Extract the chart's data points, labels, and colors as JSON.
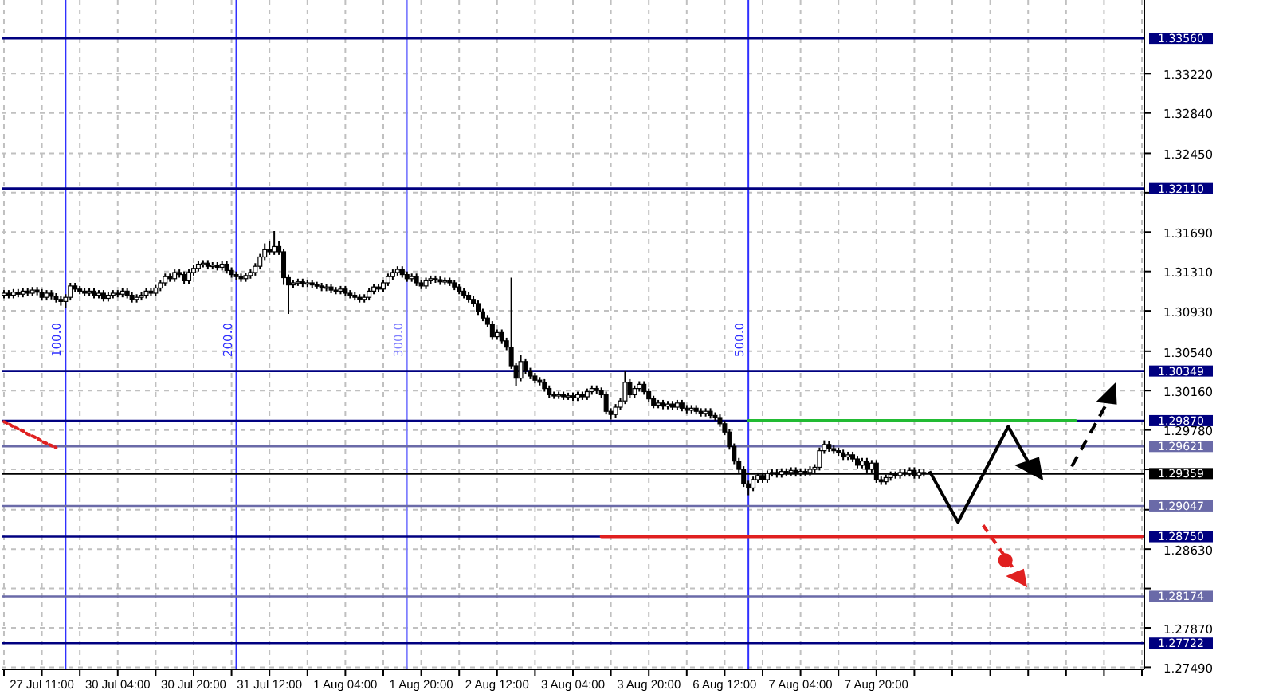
{
  "chart_data": {
    "type": "candlestick",
    "color": "#000000",
    "ylim": [
      1.2747,
      1.3393
    ],
    "grid": true,
    "categories": [
      null,
      null,
      null,
      null,
      null,
      null,
      null,
      null,
      "27 Jul 11:00",
      null,
      null,
      null,
      null,
      null,
      null,
      null,
      null,
      null,
      null,
      null,
      null,
      null,
      null,
      null,
      "30 Jul 04:00",
      null,
      null,
      null,
      null,
      null,
      null,
      null,
      null,
      null,
      null,
      null,
      null,
      null,
      null,
      null,
      "30 Jul 20:00",
      null,
      null,
      null,
      null,
      null,
      null,
      null,
      null,
      null,
      null,
      null,
      null,
      null,
      null,
      null,
      "31 Jul 12:00",
      null,
      null,
      null,
      null,
      null,
      null,
      null,
      null,
      null,
      null,
      null,
      null,
      null,
      null,
      null,
      "1 Aug 04:00",
      null,
      null,
      null,
      null,
      null,
      null,
      null,
      null,
      null,
      null,
      null,
      null,
      null,
      null,
      null,
      "1 Aug 20:00",
      null,
      null,
      null,
      null,
      null,
      null,
      null,
      null,
      null,
      null,
      null,
      null,
      null,
      null,
      null,
      "2 Aug 12:00",
      null,
      null,
      null,
      null,
      null,
      null,
      null,
      null,
      null,
      null,
      null,
      null,
      null,
      null,
      null,
      "3 Aug 04:00",
      null,
      null,
      null,
      null,
      null,
      null,
      null,
      null,
      null,
      null,
      null,
      null,
      null,
      null,
      null,
      "3 Aug 20:00",
      null,
      null,
      null,
      null,
      null,
      null,
      null,
      null,
      null,
      null,
      null,
      null,
      null,
      null,
      null,
      "6 Aug 12:00",
      null,
      null,
      null,
      null,
      null,
      null,
      null,
      null,
      null,
      null,
      null,
      null,
      null,
      null,
      null,
      "7 Aug 04:00",
      null,
      null,
      null,
      null,
      null,
      null,
      null,
      null,
      null,
      null,
      null,
      null,
      null,
      null,
      null,
      "7 Aug 20:00",
      null,
      null,
      null,
      null,
      null,
      null,
      null,
      null,
      null,
      null,
      null,
      null,
      null,
      null,
      null,
      null,
      null,
      null,
      null,
      null,
      null,
      null,
      null,
      null,
      null,
      null,
      null,
      null,
      null,
      null,
      null,
      null,
      null,
      null,
      null,
      null,
      null,
      null,
      null,
      null,
      null,
      null,
      null,
      null,
      null,
      null,
      null,
      null,
      null,
      null,
      null,
      null,
      null,
      null,
      null,
      null
    ],
    "annotations": [
      "100.0",
      "200.0",
      "300.0",
      "500.0"
    ],
    "yticks": [
      {
        "value": 1.2749,
        "label": "1.27490"
      },
      {
        "value": 1.2787,
        "label": "1.27870"
      },
      {
        "value": 1.2825,
        "label": null
      },
      {
        "value": 1.2863,
        "label": "1.28630"
      },
      {
        "value": 1.2901,
        "label": null
      },
      {
        "value": 1.294,
        "label": null
      },
      {
        "value": 1.2978,
        "label": "1.29780"
      },
      {
        "value": 1.3016,
        "label": "1.30160"
      },
      {
        "value": 1.3054,
        "label": "1.30540"
      },
      {
        "value": 1.3093,
        "label": "1.30930"
      },
      {
        "value": 1.3131,
        "label": "1.31310"
      },
      {
        "value": 1.3169,
        "label": "1.31690"
      },
      {
        "value": 1.3207,
        "label": null
      },
      {
        "value": 1.3245,
        "label": "1.32450"
      },
      {
        "value": 1.3284,
        "label": "1.32840"
      },
      {
        "value": 1.3322,
        "label": "1.33220"
      }
    ],
    "ref_lines": [
      {
        "axis": "y",
        "value": 1.3356,
        "label": "1.33560",
        "color": "#000080"
      },
      {
        "axis": "y",
        "value": 1.3211,
        "label": "1.32110",
        "color": "#000080"
      },
      {
        "axis": "y",
        "value": 1.30349,
        "label": "1.30349",
        "color": "#000080"
      },
      {
        "axis": "y",
        "value": 1.2987,
        "label": "1.29870",
        "color": "#000080"
      },
      {
        "axis": "y",
        "value": 1.29621,
        "label": "1.29621",
        "color": "#6a6aa8"
      },
      {
        "axis": "y",
        "value": 1.29359,
        "label": "1.29359",
        "color": "#000000"
      },
      {
        "axis": "y",
        "value": 1.29047,
        "label": "1.29047",
        "color": "#6a6aa8"
      },
      {
        "axis": "y",
        "value": 1.2875,
        "label": "1.28750",
        "color": "#000080"
      },
      {
        "axis": "y",
        "value": 1.28174,
        "label": "1.28174",
        "color": "#6a6aa8"
      },
      {
        "axis": "y",
        "value": 1.27722,
        "label": "1.27722",
        "color": "#000080"
      }
    ],
    "series": [
      {
        "type": "line",
        "color": "#22bb33",
        "values": [
          null,
          null,
          null,
          null,
          null,
          null,
          null,
          null,
          null,
          null,
          null,
          null,
          null,
          null,
          null,
          null,
          null,
          null,
          null,
          null,
          null,
          null,
          null,
          null,
          null,
          null,
          null,
          null,
          null,
          null,
          null,
          null,
          null,
          null,
          null,
          null,
          null,
          null,
          null,
          null,
          null,
          null,
          null,
          null,
          null,
          null,
          null,
          null,
          null,
          null,
          null,
          null,
          null,
          null,
          null,
          null,
          null,
          null,
          null,
          null,
          null,
          null,
          null,
          null,
          null,
          null,
          null,
          null,
          null,
          null,
          null,
          null,
          null,
          null,
          null,
          null,
          null,
          null,
          null,
          null,
          null,
          null,
          null,
          null,
          null,
          null,
          null,
          null,
          null,
          null,
          null,
          null,
          null,
          null,
          null,
          null,
          null,
          null,
          null,
          null,
          null,
          null,
          null,
          null,
          null,
          null,
          null,
          null,
          null,
          null,
          null,
          null,
          null,
          null,
          null,
          null,
          null,
          null,
          null,
          null,
          null,
          null,
          null,
          null,
          null,
          null,
          null,
          null,
          null,
          null,
          null,
          null,
          null,
          null,
          null,
          null,
          null,
          null,
          null,
          null,
          null,
          null,
          null,
          null,
          null,
          null,
          null,
          null,
          null,
          null,
          null,
          null,
          null,
          null,
          null,
          null,
          null,
          1.2987,
          1.2987,
          1.2987,
          1.2987,
          1.2987,
          1.2987,
          1.2987,
          1.2987,
          1.2987,
          1.2987,
          1.2987,
          1.2987,
          1.2987,
          1.2987,
          1.2987,
          1.2987,
          1.2987,
          1.2987,
          1.2987,
          1.2987,
          1.2987,
          1.2987,
          1.2987,
          1.2987,
          1.2987,
          1.2987,
          1.2987,
          1.2987,
          1.2987,
          1.2987,
          1.2987,
          1.2987,
          1.2987,
          1.2987,
          1.2987,
          1.2987,
          1.2987,
          1.2987,
          1.2987,
          1.2987,
          1.2987,
          1.2987,
          1.2987,
          1.2987,
          1.2987,
          1.2987,
          1.2987,
          1.2987,
          1.2987,
          1.2987,
          1.2987,
          1.2987,
          1.2987,
          1.2987,
          1.2987,
          1.2987,
          1.2987,
          1.2987,
          1.2987,
          1.2987,
          1.2987,
          1.2987,
          1.2987,
          1.2987,
          1.2987,
          1.2987,
          1.2987,
          1.2987,
          1.2987,
          1.2987,
          null,
          null,
          null,
          null,
          null,
          null,
          null,
          null,
          null,
          null,
          null,
          null,
          null,
          null
        ]
      },
      {
        "type": "line",
        "color": "#e02020",
        "values": [
          null,
          null,
          null,
          null,
          null,
          null,
          null,
          null,
          null,
          null,
          null,
          null,
          null,
          null,
          null,
          null,
          null,
          null,
          null,
          null,
          null,
          null,
          null,
          null,
          null,
          null,
          null,
          null,
          null,
          null,
          null,
          null,
          null,
          null,
          null,
          null,
          null,
          null,
          null,
          null,
          null,
          null,
          null,
          null,
          null,
          null,
          null,
          null,
          null,
          null,
          null,
          null,
          null,
          null,
          null,
          null,
          null,
          null,
          null,
          null,
          null,
          null,
          null,
          null,
          null,
          null,
          null,
          null,
          null,
          null,
          null,
          null,
          null,
          null,
          null,
          null,
          null,
          null,
          null,
          null,
          null,
          null,
          null,
          null,
          null,
          null,
          null,
          null,
          null,
          null,
          null,
          null,
          null,
          null,
          null,
          null,
          null,
          null,
          null,
          null,
          null,
          null,
          null,
          null,
          null,
          null,
          null,
          null,
          null,
          null,
          null,
          null,
          null,
          null,
          null,
          null,
          null,
          null,
          null,
          null,
          null,
          null,
          null,
          null,
          null,
          null,
          1.2875,
          1.2875,
          1.2875,
          1.2875,
          1.2875,
          1.2875,
          1.2875,
          1.2875,
          1.2875,
          1.2875,
          1.2875,
          1.2875,
          1.2875,
          1.2875,
          1.2875,
          1.2875,
          1.2875,
          1.2875,
          1.2875,
          1.2875,
          1.2875,
          1.2875,
          1.2875,
          1.2875,
          1.2875,
          1.2875,
          1.2875,
          1.2875,
          1.2875,
          1.2875,
          1.2875,
          1.2875,
          1.2875,
          1.2875,
          1.2875,
          1.2875,
          1.2875,
          1.2875,
          1.2875,
          1.2875,
          1.2875,
          1.2875,
          1.2875,
          1.2875,
          1.2875,
          1.2875,
          1.2875,
          1.2875,
          1.2875,
          1.2875,
          1.2875,
          1.2875,
          1.2875,
          1.2875,
          1.2875,
          1.2875,
          1.2875,
          1.2875,
          1.2875,
          1.2875,
          1.2875,
          1.2875,
          1.2875,
          1.2875,
          1.2875,
          1.2875,
          1.2875,
          1.2875,
          1.2875,
          1.2875,
          1.2875,
          1.2875,
          1.2875,
          1.2875,
          1.2875,
          1.2875,
          1.2875,
          1.2875,
          1.2875,
          1.2875,
          1.2875,
          1.2875,
          1.2875,
          1.2875,
          1.2875,
          1.2875,
          1.2875,
          1.2875,
          1.2875,
          1.2875,
          1.2875,
          1.2875,
          1.2875,
          1.2875,
          1.2875,
          1.2875,
          1.2875,
          1.2875,
          1.2875,
          1.2875,
          1.2875,
          1.2875,
          1.2875,
          1.2875,
          1.2875,
          1.2875,
          1.2875,
          1.2875,
          1.2875,
          1.2875,
          1.2875,
          1.2875,
          1.2875,
          1.2875,
          1.2875
        ]
      },
      {
        "type": "line",
        "color": "#e02020",
        "line_style": "dotted",
        "values": [
          1.2986,
          1.2984,
          1.2981,
          1.2979,
          1.2977,
          1.2974,
          1.2972,
          1.297,
          1.2967,
          1.2965,
          1.2963,
          1.2961,
          null,
          null,
          null,
          null,
          null,
          null,
          null,
          null,
          null,
          null,
          null,
          null,
          null,
          null,
          null,
          null,
          null,
          null,
          null,
          null,
          null,
          null,
          null,
          null,
          null,
          null,
          null,
          null,
          null,
          null,
          null,
          null,
          null,
          null,
          null,
          null,
          null,
          null,
          null,
          null,
          null,
          null,
          null,
          null,
          null,
          null,
          null,
          null,
          null,
          null,
          null,
          null,
          null,
          null,
          null,
          null,
          null,
          null,
          null,
          null,
          null,
          null,
          null,
          null,
          null,
          null,
          null,
          null,
          null,
          null,
          null,
          null,
          null,
          null,
          null,
          null,
          null,
          null,
          null,
          null,
          null,
          null,
          null,
          null,
          null,
          null,
          null,
          null,
          null,
          null,
          null,
          null,
          null,
          null,
          null,
          null,
          null,
          null,
          null,
          null,
          null,
          null,
          null,
          null,
          null,
          null,
          null,
          null,
          null,
          null,
          null,
          null,
          null,
          null,
          null,
          null,
          null,
          null,
          null,
          null,
          null,
          null,
          null,
          null,
          null,
          null,
          null,
          null,
          null,
          null,
          null,
          null,
          null,
          null,
          null,
          null,
          null,
          null,
          null,
          null,
          null,
          null,
          null,
          null,
          null,
          null,
          null,
          null,
          null,
          null,
          null,
          null,
          null,
          null,
          null,
          null,
          null,
          null,
          null,
          null,
          null,
          null,
          null,
          null,
          null,
          null,
          null,
          null,
          null,
          null,
          null,
          null,
          null,
          null,
          null,
          null,
          null,
          null,
          null,
          null,
          null,
          null,
          null,
          null,
          null,
          null,
          null,
          null,
          null,
          null,
          null,
          null,
          null,
          null,
          null,
          null,
          null,
          null,
          null,
          null,
          null,
          null,
          null,
          null,
          null,
          null,
          null,
          null,
          null,
          null,
          null,
          null,
          null,
          null,
          null,
          null,
          null,
          null,
          null,
          null,
          null,
          null,
          null,
          null,
          null,
          null,
          null,
          null,
          null
        ]
      }
    ],
    "ohlc": [
      [
        1.3108,
        1.3113,
        1.3105,
        1.311
      ],
      [
        1.311,
        1.3113,
        1.3105,
        1.3108
      ],
      [
        1.3108,
        1.3114,
        1.3105,
        1.3111
      ],
      [
        1.3111,
        1.3114,
        1.3106,
        1.3109
      ],
      [
        1.3109,
        1.3115,
        1.3106,
        1.3112
      ],
      [
        1.3112,
        1.3115,
        1.3107,
        1.311
      ],
      [
        1.311,
        1.3116,
        1.3107,
        1.3113
      ],
      [
        1.3113,
        1.3116,
        1.3108,
        1.3111
      ],
      [
        1.3111,
        1.3114,
        1.3103,
        1.3106
      ],
      [
        1.3106,
        1.3113,
        1.3103,
        1.311
      ],
      [
        1.311,
        1.3113,
        1.3104,
        1.3107
      ],
      [
        1.3107,
        1.311,
        1.3101,
        1.3104
      ],
      [
        1.3104,
        1.3107,
        1.3098,
        1.3102
      ],
      [
        1.3102,
        1.3109,
        1.3096,
        1.3106
      ],
      [
        1.3106,
        1.312,
        1.3103,
        1.3117
      ],
      [
        1.3117,
        1.312,
        1.3111,
        1.3114
      ],
      [
        1.3114,
        1.3117,
        1.3109,
        1.3112
      ],
      [
        1.3112,
        1.3115,
        1.3107,
        1.311
      ],
      [
        1.311,
        1.3115,
        1.3107,
        1.3112
      ],
      [
        1.3112,
        1.3115,
        1.3105,
        1.3108
      ],
      [
        1.3108,
        1.3113,
        1.3105,
        1.311
      ],
      [
        1.311,
        1.3113,
        1.3102,
        1.3105
      ],
      [
        1.3105,
        1.3111,
        1.3102,
        1.3108
      ],
      [
        1.3108,
        1.3113,
        1.3105,
        1.311
      ],
      [
        1.311,
        1.3113,
        1.3106,
        1.3109
      ],
      [
        1.3109,
        1.3115,
        1.3106,
        1.3112
      ],
      [
        1.3112,
        1.3115,
        1.3105,
        1.3108
      ],
      [
        1.3108,
        1.3111,
        1.3101,
        1.3104
      ],
      [
        1.3104,
        1.3109,
        1.3101,
        1.3106
      ],
      [
        1.3106,
        1.3111,
        1.3103,
        1.3108
      ],
      [
        1.3108,
        1.3115,
        1.3105,
        1.3112
      ],
      [
        1.3112,
        1.3115,
        1.3107,
        1.311
      ],
      [
        1.311,
        1.3118,
        1.3107,
        1.3115
      ],
      [
        1.3115,
        1.3123,
        1.3112,
        1.312
      ],
      [
        1.312,
        1.3129,
        1.3117,
        1.3126
      ],
      [
        1.3126,
        1.3129,
        1.3121,
        1.3124
      ],
      [
        1.3124,
        1.3133,
        1.3121,
        1.313
      ],
      [
        1.313,
        1.3133,
        1.3125,
        1.3128
      ],
      [
        1.3128,
        1.3131,
        1.3119,
        1.3122
      ],
      [
        1.3122,
        1.3133,
        1.3119,
        1.313
      ],
      [
        1.313,
        1.3137,
        1.3127,
        1.3134
      ],
      [
        1.3134,
        1.3141,
        1.3131,
        1.3138
      ],
      [
        1.3138,
        1.3142,
        1.3135,
        1.3139
      ],
      [
        1.3139,
        1.3142,
        1.3133,
        1.3136
      ],
      [
        1.3136,
        1.314,
        1.3133,
        1.3137
      ],
      [
        1.3137,
        1.314,
        1.3132,
        1.3135
      ],
      [
        1.3135,
        1.3141,
        1.3132,
        1.3138
      ],
      [
        1.3138,
        1.3141,
        1.3129,
        1.3132
      ],
      [
        1.3132,
        1.3135,
        1.3125,
        1.3128
      ],
      [
        1.3128,
        1.3131,
        1.3123,
        1.3126
      ],
      [
        1.3126,
        1.3129,
        1.3121,
        1.3124
      ],
      [
        1.3124,
        1.313,
        1.3121,
        1.3127
      ],
      [
        1.3127,
        1.3133,
        1.3124,
        1.313
      ],
      [
        1.313,
        1.3139,
        1.3127,
        1.3136
      ],
      [
        1.3136,
        1.3148,
        1.3133,
        1.3145
      ],
      [
        1.3145,
        1.3158,
        1.3142,
        1.3152
      ],
      [
        1.3152,
        1.316,
        1.3147,
        1.315
      ],
      [
        1.315,
        1.317,
        1.3147,
        1.3155
      ],
      [
        1.3155,
        1.316,
        1.3147,
        1.315
      ],
      [
        1.315,
        1.3153,
        1.3118,
        1.3125
      ],
      [
        1.3125,
        1.3128,
        1.309,
        1.3118
      ],
      [
        1.3118,
        1.3123,
        1.3115,
        1.312
      ],
      [
        1.312,
        1.3124,
        1.3117,
        1.3121
      ],
      [
        1.3121,
        1.3124,
        1.3116,
        1.3119
      ],
      [
        1.3119,
        1.3123,
        1.3116,
        1.312
      ],
      [
        1.312,
        1.3123,
        1.3115,
        1.3118
      ],
      [
        1.3118,
        1.3121,
        1.3114,
        1.3117
      ],
      [
        1.3117,
        1.312,
        1.3112,
        1.3115
      ],
      [
        1.3115,
        1.3119,
        1.3112,
        1.3116
      ],
      [
        1.3116,
        1.3119,
        1.311,
        1.3113
      ],
      [
        1.3113,
        1.3116,
        1.3109,
        1.3112
      ],
      [
        1.3112,
        1.3117,
        1.3109,
        1.3114
      ],
      [
        1.3114,
        1.3117,
        1.3107,
        1.311
      ],
      [
        1.311,
        1.3113,
        1.3105,
        1.3108
      ],
      [
        1.3108,
        1.3111,
        1.3103,
        1.3106
      ],
      [
        1.3106,
        1.3109,
        1.3101,
        1.3104
      ],
      [
        1.3104,
        1.3109,
        1.3101,
        1.3106
      ],
      [
        1.3106,
        1.3115,
        1.3103,
        1.3112
      ],
      [
        1.3112,
        1.3119,
        1.3109,
        1.3116
      ],
      [
        1.3116,
        1.3119,
        1.3111,
        1.3114
      ],
      [
        1.3114,
        1.3123,
        1.3111,
        1.312
      ],
      [
        1.312,
        1.3129,
        1.3117,
        1.3126
      ],
      [
        1.3126,
        1.3133,
        1.3123,
        1.313
      ],
      [
        1.313,
        1.3136,
        1.3127,
        1.3133
      ],
      [
        1.3133,
        1.3136,
        1.3125,
        1.3128
      ],
      [
        1.3128,
        1.3131,
        1.3121,
        1.3124
      ],
      [
        1.3124,
        1.3129,
        1.3121,
        1.3126
      ],
      [
        1.3126,
        1.3129,
        1.3117,
        1.312
      ],
      [
        1.312,
        1.3123,
        1.3114,
        1.3117
      ],
      [
        1.3117,
        1.3125,
        1.3114,
        1.3122
      ],
      [
        1.3122,
        1.3127,
        1.3119,
        1.3124
      ],
      [
        1.3124,
        1.3127,
        1.312,
        1.3123
      ],
      [
        1.3123,
        1.3126,
        1.3118,
        1.3121
      ],
      [
        1.3121,
        1.3125,
        1.3118,
        1.3122
      ],
      [
        1.3122,
        1.3125,
        1.3117,
        1.312
      ],
      [
        1.312,
        1.3123,
        1.3113,
        1.3116
      ],
      [
        1.3116,
        1.3119,
        1.3109,
        1.3112
      ],
      [
        1.3112,
        1.3115,
        1.3105,
        1.3108
      ],
      [
        1.3108,
        1.3111,
        1.3101,
        1.3104
      ],
      [
        1.3104,
        1.3107,
        1.3097,
        1.31
      ],
      [
        1.31,
        1.3103,
        1.3089,
        1.3092
      ],
      [
        1.3092,
        1.3095,
        1.3083,
        1.3086
      ],
      [
        1.3086,
        1.3089,
        1.3077,
        1.308
      ],
      [
        1.308,
        1.3083,
        1.3065,
        1.3068
      ],
      [
        1.3068,
        1.3075,
        1.3065,
        1.3072
      ],
      [
        1.3072,
        1.3075,
        1.3061,
        1.3064
      ],
      [
        1.3064,
        1.3067,
        1.3055,
        1.3058
      ],
      [
        1.3058,
        1.3125,
        1.3037,
        1.304
      ],
      [
        1.304,
        1.3043,
        1.302,
        1.3028
      ],
      [
        1.3028,
        1.305,
        1.3025,
        1.3044
      ],
      [
        1.3044,
        1.3047,
        1.3032,
        1.3035
      ],
      [
        1.3035,
        1.3038,
        1.3027,
        1.303
      ],
      [
        1.303,
        1.3033,
        1.3023,
        1.3026
      ],
      [
        1.3026,
        1.3029,
        1.3021,
        1.3024
      ],
      [
        1.3024,
        1.3027,
        1.3015,
        1.3018
      ],
      [
        1.3018,
        1.3021,
        1.3009,
        1.3012
      ],
      [
        1.3012,
        1.3015,
        1.3008,
        1.3011
      ],
      [
        1.3011,
        1.3015,
        1.3008,
        1.3012
      ],
      [
        1.3012,
        1.3015,
        1.3007,
        1.301
      ],
      [
        1.301,
        1.3014,
        1.3007,
        1.3011
      ],
      [
        1.3011,
        1.3014,
        1.3006,
        1.3009
      ],
      [
        1.3009,
        1.3015,
        1.3006,
        1.3012
      ],
      [
        1.3012,
        1.3015,
        1.3007,
        1.301
      ],
      [
        1.301,
        1.3018,
        1.3007,
        1.3015
      ],
      [
        1.3015,
        1.3021,
        1.3012,
        1.3018
      ],
      [
        1.3018,
        1.3021,
        1.3013,
        1.3016
      ],
      [
        1.3016,
        1.3019,
        1.3009,
        1.3012
      ],
      [
        1.3012,
        1.3015,
        1.2993,
        1.2996
      ],
      [
        1.2996,
        1.2999,
        1.2988,
        1.2993
      ],
      [
        1.2993,
        1.3003,
        1.299,
        1.3
      ],
      [
        1.3,
        1.3009,
        1.2997,
        1.3006
      ],
      [
        1.3006,
        1.3035,
        1.3003,
        1.3024
      ],
      [
        1.3024,
        1.3027,
        1.3009,
        1.3012
      ],
      [
        1.3012,
        1.3021,
        1.3009,
        1.3018
      ],
      [
        1.3018,
        1.3025,
        1.3015,
        1.3022
      ],
      [
        1.3022,
        1.3025,
        1.3012,
        1.3015
      ],
      [
        1.3015,
        1.3018,
        1.3005,
        1.3008
      ],
      [
        1.3008,
        1.3011,
        1.2999,
        1.3002
      ],
      [
        1.3002,
        1.3007,
        1.2999,
        1.3004
      ],
      [
        1.3004,
        1.3007,
        1.2998,
        1.3001
      ],
      [
        1.3001,
        1.3006,
        1.2998,
        1.3003
      ],
      [
        1.3003,
        1.3006,
        1.2997,
        1.3
      ],
      [
        1.3,
        1.3007,
        1.2997,
        1.3004
      ],
      [
        1.3004,
        1.3007,
        1.2996,
        1.2999
      ],
      [
        1.2999,
        1.3002,
        1.2994,
        1.2997
      ],
      [
        1.2997,
        1.3002,
        1.2994,
        1.2999
      ],
      [
        1.2999,
        1.3002,
        1.2993,
        1.2996
      ],
      [
        1.2996,
        1.2999,
        1.2991,
        1.2994
      ],
      [
        1.2994,
        1.2999,
        1.2991,
        1.2996
      ],
      [
        1.2996,
        1.2999,
        1.2989,
        1.2992
      ],
      [
        1.2992,
        1.2995,
        1.2987,
        1.299
      ],
      [
        1.299,
        1.2993,
        1.2981,
        1.2984
      ],
      [
        1.2984,
        1.2987,
        1.2973,
        1.2976
      ],
      [
        1.2976,
        1.2979,
        1.2959,
        1.2962
      ],
      [
        1.2962,
        1.2965,
        1.2945,
        1.2948
      ],
      [
        1.2948,
        1.2951,
        1.2937,
        1.294
      ],
      [
        1.294,
        1.2943,
        1.2923,
        1.2926
      ],
      [
        1.2926,
        1.2929,
        1.2915,
        1.2922
      ],
      [
        1.2922,
        1.2933,
        1.2919,
        1.293
      ],
      [
        1.293,
        1.2937,
        1.2927,
        1.2934
      ],
      [
        1.2934,
        1.2937,
        1.2927,
        1.293
      ],
      [
        1.293,
        1.2939,
        1.2927,
        1.2936
      ],
      [
        1.2936,
        1.294,
        1.2933,
        1.2937
      ],
      [
        1.2937,
        1.294,
        1.2932,
        1.2935
      ],
      [
        1.2935,
        1.2941,
        1.2932,
        1.2938
      ],
      [
        1.2938,
        1.2941,
        1.2934,
        1.2937
      ],
      [
        1.2937,
        1.2942,
        1.2934,
        1.2939
      ],
      [
        1.2939,
        1.2942,
        1.2933,
        1.2936
      ],
      [
        1.2936,
        1.2941,
        1.2933,
        1.2938
      ],
      [
        1.2938,
        1.2941,
        1.2934,
        1.2937
      ],
      [
        1.2937,
        1.2943,
        1.2934,
        1.294
      ],
      [
        1.294,
        1.2945,
        1.2937,
        1.2942
      ],
      [
        1.2942,
        1.2961,
        1.2939,
        1.2958
      ],
      [
        1.2958,
        1.2968,
        1.2955,
        1.2964
      ],
      [
        1.2964,
        1.2967,
        1.2957,
        1.296
      ],
      [
        1.296,
        1.2963,
        1.2955,
        1.2958
      ],
      [
        1.2958,
        1.2961,
        1.2953,
        1.2956
      ],
      [
        1.2956,
        1.2959,
        1.2949,
        1.2952
      ],
      [
        1.2952,
        1.2957,
        1.2949,
        1.2954
      ],
      [
        1.2954,
        1.2957,
        1.2947,
        1.295
      ],
      [
        1.295,
        1.2953,
        1.2941,
        1.2944
      ],
      [
        1.2944,
        1.2951,
        1.2941,
        1.2948
      ],
      [
        1.2948,
        1.2951,
        1.2937,
        1.294
      ],
      [
        1.294,
        1.2949,
        1.2937,
        1.2946
      ],
      [
        1.2946,
        1.2949,
        1.2927,
        1.293
      ],
      [
        1.293,
        1.2933,
        1.2925,
        1.2928
      ],
      [
        1.2928,
        1.2935,
        1.2925,
        1.2932
      ],
      [
        1.2932,
        1.2938,
        1.2929,
        1.2935
      ],
      [
        1.2935,
        1.2938,
        1.2931,
        1.2934
      ],
      [
        1.2934,
        1.294,
        1.2931,
        1.2937
      ],
      [
        1.2937,
        1.294,
        1.2933,
        1.2936
      ],
      [
        1.2936,
        1.2942,
        1.2933,
        1.2939
      ],
      [
        1.2939,
        1.2942,
        1.2931,
        1.2934
      ],
      [
        1.2934,
        1.294,
        1.2931,
        1.2937
      ],
      [
        1.2937,
        1.294,
        1.2933,
        1.2936
      ],
      null,
      null,
      null,
      null,
      null,
      null,
      null,
      null,
      null,
      null,
      null,
      null,
      null,
      null,
      null,
      null,
      null,
      null,
      null,
      null,
      null,
      null,
      null,
      null,
      null,
      null,
      null,
      null,
      null,
      null,
      null,
      null,
      null,
      null,
      null,
      null,
      null,
      null,
      null,
      null,
      null,
      null,
      null,
      null,
      null,
      null
    ]
  }
}
